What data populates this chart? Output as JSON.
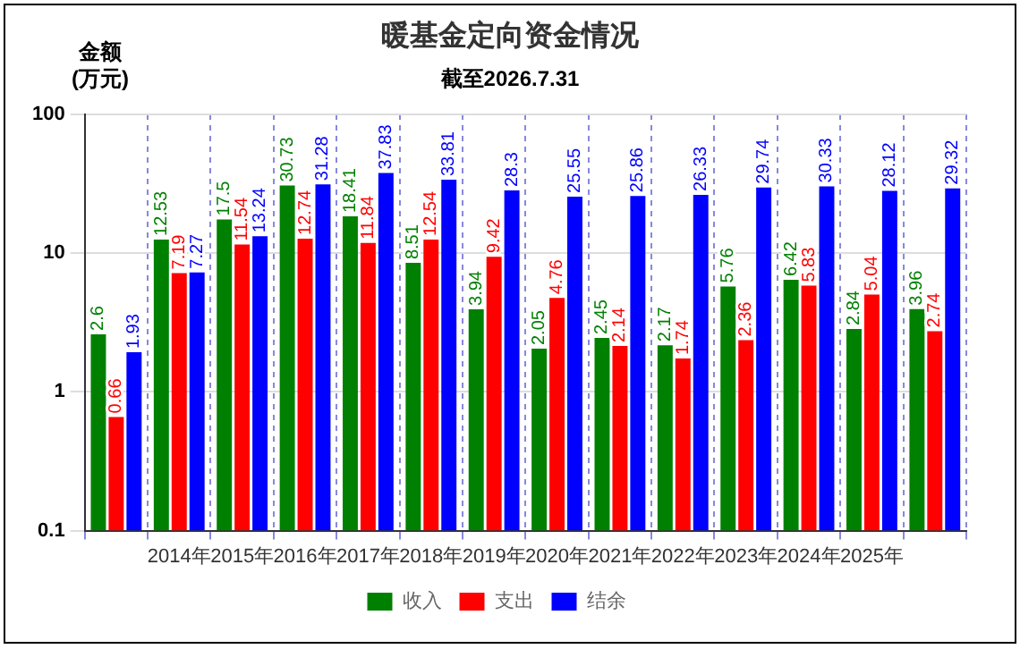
{
  "chart_data": {
    "type": "bar",
    "title": "暖基金定向资金情况",
    "subtitle": "截至2026.7.31",
    "ylabel": "金额\n(万元)",
    "categories": [
      null,
      "2014年",
      "2015年",
      "2016年",
      "2017年",
      "2018年",
      "2019年",
      "2020年",
      "2021年",
      "2022年",
      "2023年",
      "2024年",
      "2025年",
      null
    ],
    "series": [
      {
        "name": "收入",
        "color": "#008000",
        "values": [
          2.6,
          12.53,
          17.5,
          30.73,
          18.41,
          8.51,
          3.94,
          2.05,
          2.45,
          2.17,
          5.76,
          6.42,
          2.84,
          3.96
        ]
      },
      {
        "name": "支出",
        "color": "#ff0000",
        "values": [
          0.66,
          7.19,
          11.54,
          12.74,
          11.84,
          12.54,
          9.42,
          4.76,
          2.14,
          1.74,
          2.36,
          5.83,
          5.04,
          2.74
        ]
      },
      {
        "name": "结余",
        "color": "#0000ff",
        "values": [
          1.93,
          7.27,
          13.24,
          31.28,
          37.83,
          33.81,
          28.3,
          25.55,
          25.86,
          26.33,
          29.74,
          30.33,
          28.12,
          29.32
        ]
      }
    ],
    "log": true,
    "ylim": [
      0.1,
      100
    ],
    "yticks": [
      0.1,
      1,
      10,
      100
    ],
    "grid": true,
    "legend": "bottom",
    "data_labels": true
  }
}
